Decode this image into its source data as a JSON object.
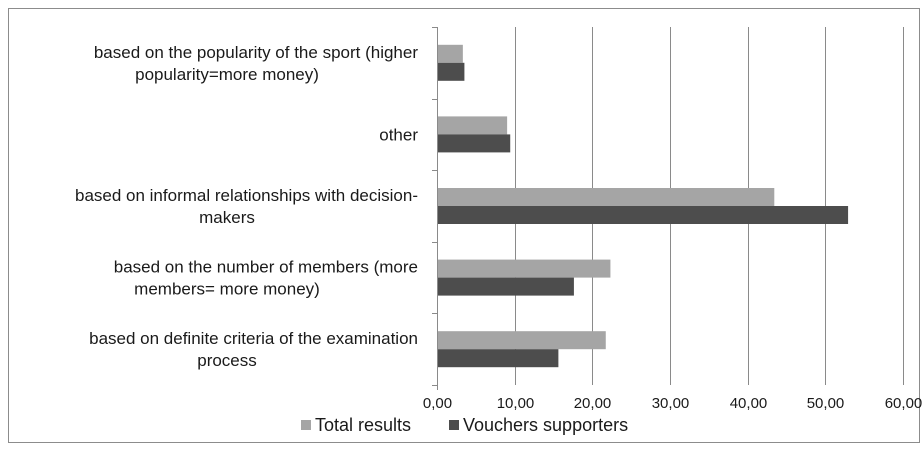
{
  "chart_data": {
    "type": "bar",
    "orientation": "horizontal",
    "categories": [
      [
        "based on the popularity of the sport (higher",
        "popularity=more money)"
      ],
      [
        "other"
      ],
      [
        "based on informal relationships with decision-",
        "makers"
      ],
      [
        "based on the number of members (more",
        "members= more money)"
      ],
      [
        "based on definite criteria of the examination",
        "process"
      ]
    ],
    "series": [
      {
        "name": "Total results",
        "values": [
          3.2,
          8.9,
          43.3,
          22.2,
          21.6
        ],
        "color": "#a5a5a5"
      },
      {
        "name": "Vouchers supporters",
        "values": [
          3.4,
          9.3,
          52.8,
          17.5,
          15.5
        ],
        "color": "#4d4d4d"
      }
    ],
    "x_ticks": [
      "0,00",
      "10,00",
      "20,00",
      "30,00",
      "40,00",
      "50,00",
      "60,00"
    ],
    "xlim": [
      0,
      60
    ],
    "grid": true,
    "legend_position": "bottom",
    "title": "",
    "xlabel": "",
    "ylabel": ""
  }
}
